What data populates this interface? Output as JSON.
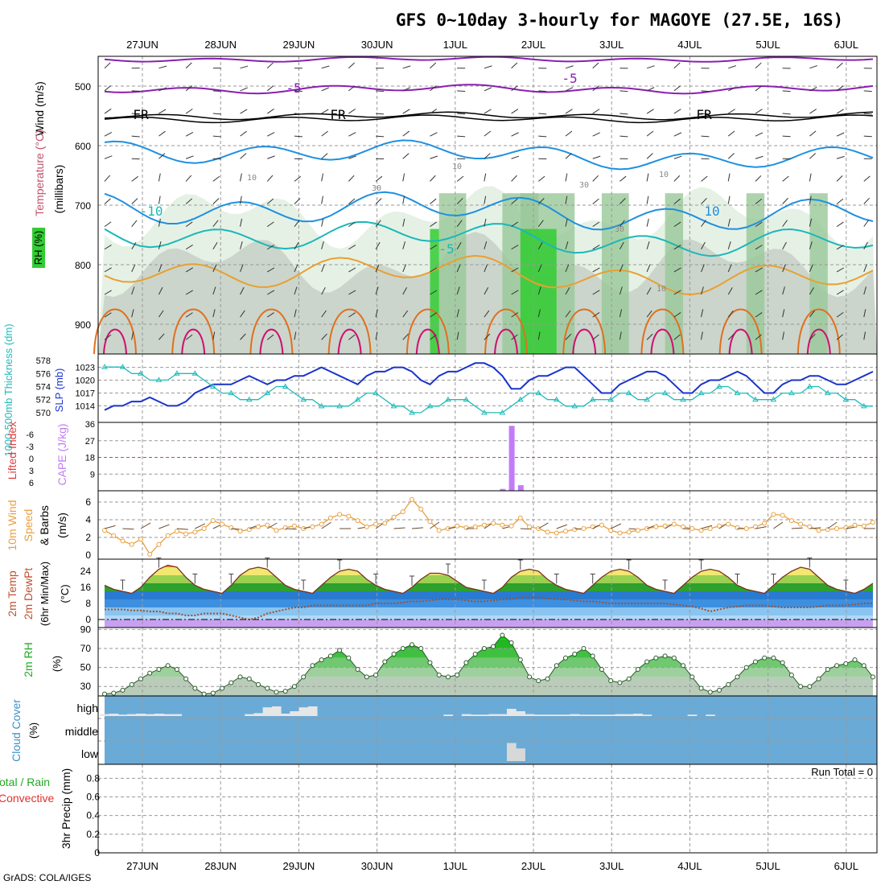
{
  "title": "GFS 0~10day 3-hourly for MAGOYE (27.5E, 16S)",
  "credit": "GrADS: COLA/IGES",
  "run_total": "Run Total = 0",
  "colors": {
    "rh_high": "#33cc33",
    "rh_mid": "#98c898",
    "rh_low": "#e3f0e3",
    "rh_gray": "#c8d2c8",
    "slp": "#1a33cc",
    "thickness": "#22bbbb",
    "cape": "#c27cf6",
    "wind10": "#e8a040",
    "cloud": "#6aaad6",
    "temp_line": "#7a3020",
    "dewpt": "#a05030"
  },
  "chart_data": {
    "type": "meteogram",
    "days": [
      "27JUN",
      "28JUN",
      "29JUN",
      "30JUN",
      "1JUL",
      "2JUL",
      "3JUL",
      "4JUL",
      "5JUL",
      "6JUL"
    ],
    "panels": [
      {
        "id": "upper-air",
        "ylabel": [
          "Temperature (°C)",
          "Wind (m/s)"
        ],
        "ylabel_inner": "(millibars)",
        "rh_label": "RH (%)",
        "yticks": [
          "500",
          "600",
          "700",
          "800",
          "900"
        ],
        "ylim": [
          950,
          450
        ],
        "contour_labels": [
          "-5",
          "-5",
          "FR",
          "FR",
          "FR",
          "10",
          "10",
          "-10",
          "-5",
          "10",
          "30",
          "30",
          "10",
          "30",
          "10"
        ]
      },
      {
        "id": "slp-thickness",
        "ylabel_left": "1000-500mb Thickness (dm)",
        "ylabel_right": "SLP (mb)",
        "yticks_left": [
          "578",
          "576",
          "574",
          "572",
          "570"
        ],
        "yticks_right": [
          "1023",
          "1020",
          "1017",
          "1014"
        ],
        "slp": [
          1013,
          1014,
          1014,
          1015,
          1015,
          1016,
          1015,
          1014,
          1014,
          1015,
          1017,
          1018,
          1019,
          1019,
          1019,
          1020,
          1021,
          1020,
          1019,
          1020,
          1020,
          1021,
          1021,
          1022,
          1023,
          1022,
          1021,
          1020,
          1019,
          1021,
          1022,
          1022,
          1023,
          1023,
          1022,
          1020,
          1019,
          1021,
          1022,
          1022,
          1023,
          1024,
          1024,
          1023,
          1021,
          1018,
          1018,
          1020,
          1021,
          1021,
          1022,
          1023,
          1023,
          1021,
          1019,
          1017,
          1017,
          1019,
          1020,
          1021,
          1022,
          1022,
          1021,
          1019,
          1017,
          1017,
          1019,
          1020,
          1020,
          1021,
          1022,
          1021,
          1019,
          1017,
          1017,
          1019,
          1020,
          1020,
          1021,
          1021,
          1020,
          1019,
          1019,
          1020,
          1021,
          1022
        ],
        "thickness": [
          577,
          577,
          577,
          576,
          576,
          575,
          575,
          575,
          576,
          576,
          576,
          575,
          574,
          573,
          573,
          572,
          572,
          572,
          573,
          574,
          574,
          573,
          572,
          572,
          571,
          571,
          571,
          571,
          572,
          573,
          573,
          572,
          571,
          571,
          570,
          570,
          571,
          571,
          572,
          572,
          572,
          571,
          570,
          570,
          570,
          571,
          572,
          573,
          573,
          572,
          572,
          571,
          571,
          571,
          572,
          572,
          572,
          573,
          573,
          572,
          572,
          573,
          573,
          572,
          572,
          572,
          573,
          573,
          574,
          574,
          573,
          573,
          572,
          572,
          572,
          573,
          573,
          573,
          574,
          574,
          573,
          573,
          572,
          572,
          571,
          571
        ]
      },
      {
        "id": "li-cape",
        "ylabel_left": "Lifted Index",
        "ylabel_right": "CAPE (J/kg)",
        "yticks_left": [
          "-6",
          "-3",
          "0",
          "3",
          "6"
        ],
        "yticks_right": [
          "36",
          "27",
          "18",
          "9"
        ],
        "cape": [
          {
            "i": 44,
            "v": 1
          },
          {
            "i": 45,
            "v": 35
          },
          {
            "i": 46,
            "v": 3
          }
        ]
      },
      {
        "id": "wind10",
        "ylabel": "10m Wind Speed & Barbs (m/s)",
        "yticks": [
          "6",
          "4",
          "2",
          "0"
        ],
        "ylim": [
          0,
          7
        ],
        "speed": [
          2.8,
          2.2,
          1.6,
          1.2,
          1.8,
          0.1,
          1.2,
          2.2,
          2.7,
          2.4,
          2.6,
          3.0,
          3.9,
          3.5,
          3.1,
          2.7,
          2.9,
          3.2,
          3.4,
          2.8,
          3.1,
          3.3,
          3.0,
          3.2,
          3.5,
          4.2,
          4.6,
          4.4,
          3.9,
          3.2,
          3.5,
          3.6,
          4.3,
          4.9,
          6.3,
          5.2,
          3.8,
          2.8,
          3.0,
          3.3,
          3.1,
          3.2,
          3.4,
          3.6,
          3.4,
          3.3,
          4.2,
          3.2,
          3.0,
          2.6,
          2.5,
          2.7,
          2.9,
          3.0,
          3.2,
          3.4,
          2.8,
          2.5,
          2.6,
          2.8,
          3.0,
          3.2,
          3.3,
          3.5,
          3.2,
          3.0,
          2.8,
          3.0,
          3.3,
          3.5,
          3.1,
          3.0,
          3.2,
          3.6,
          4.6,
          4.5,
          3.9,
          3.5,
          3.2,
          2.8,
          2.9,
          3.0,
          3.1,
          3.4,
          3.3,
          3.7
        ]
      },
      {
        "id": "temp",
        "ylabel": [
          "2m Temp",
          "2m DewPt",
          "(6hr Min/Max)"
        ],
        "yunit": "(°C)",
        "yticks": [
          "24",
          "16",
          "8",
          "0"
        ],
        "ylim": [
          -4,
          30
        ],
        "temp": [
          17,
          15,
          14,
          13,
          16,
          21,
          25,
          27,
          26,
          21,
          17,
          15,
          14,
          13,
          17,
          22,
          25,
          26,
          25,
          21,
          17,
          15,
          14,
          13,
          17,
          21,
          24,
          25,
          24,
          20,
          17,
          15,
          14,
          13,
          16,
          20,
          23,
          23,
          22,
          19,
          16,
          15,
          14,
          13,
          16,
          21,
          24,
          25,
          24,
          20,
          17,
          15,
          14,
          13,
          17,
          21,
          24,
          25,
          24,
          21,
          17,
          15,
          14,
          13,
          17,
          21,
          24,
          25,
          24,
          21,
          17,
          15,
          14,
          13,
          17,
          21,
          24,
          26,
          25,
          21,
          17,
          15,
          14,
          13,
          15,
          18
        ],
        "dewpt": [
          5,
          5,
          5,
          4.5,
          4.5,
          4,
          4,
          3,
          3,
          2,
          2,
          3,
          3,
          3,
          2,
          1,
          0,
          1,
          3,
          4,
          5,
          6,
          6,
          7,
          7,
          7,
          7,
          7,
          7,
          7,
          8,
          8,
          8,
          8.5,
          9,
          9,
          9.5,
          10,
          10,
          10,
          9.5,
          9,
          9,
          9.5,
          10,
          10,
          11,
          11,
          11,
          10.5,
          10,
          10,
          9.5,
          9,
          9,
          8.5,
          8,
          8,
          8,
          8,
          8,
          8,
          8,
          7.5,
          7,
          6.5,
          5.5,
          4,
          5,
          6,
          6.5,
          7,
          7,
          7,
          6.5,
          6,
          6,
          6,
          6,
          6.5,
          7,
          7,
          7,
          7.5,
          8,
          8
        ]
      },
      {
        "id": "rh",
        "ylabel": "2m RH",
        "yunit": "(%)",
        "yticks": [
          "90",
          "70",
          "50",
          "30"
        ],
        "ylim": [
          20,
          92
        ],
        "rh": [
          22,
          23,
          26,
          32,
          38,
          44,
          48,
          52,
          48,
          38,
          28,
          22,
          23,
          28,
          34,
          40,
          38,
          32,
          28,
          24,
          25,
          30,
          40,
          52,
          58,
          62,
          68,
          60,
          48,
          40,
          42,
          56,
          64,
          70,
          74,
          70,
          55,
          42,
          40,
          42,
          55,
          64,
          70,
          72,
          84,
          76,
          58,
          40,
          36,
          38,
          52,
          60,
          64,
          70,
          62,
          48,
          36,
          34,
          38,
          48,
          56,
          60,
          62,
          60,
          52,
          40,
          28,
          24,
          26,
          32,
          40,
          50,
          56,
          60,
          60,
          55,
          42,
          30,
          30,
          38,
          48,
          52,
          54,
          58,
          52,
          40
        ]
      },
      {
        "id": "cloud",
        "ylabel": "Cloud Cover",
        "yunit": "(%)",
        "levels": [
          "high",
          "middle",
          "low"
        ],
        "high": [
          4,
          5,
          3,
          4,
          5,
          4,
          5,
          4,
          4,
          0,
          0,
          0,
          0,
          0,
          0,
          0,
          4,
          6,
          18,
          20,
          5,
          10,
          18,
          20,
          0,
          0,
          0,
          0,
          0,
          0,
          0,
          0,
          0,
          0,
          0,
          0,
          0,
          0,
          3,
          0,
          4,
          3,
          3,
          4,
          4,
          15,
          10,
          4,
          3,
          3,
          3,
          3,
          4,
          3,
          3,
          3,
          3,
          4,
          4,
          5,
          3,
          0,
          0,
          0,
          0,
          3,
          0,
          3,
          0,
          0,
          0,
          0,
          0,
          0,
          0,
          0,
          0,
          0,
          0,
          0,
          0,
          0,
          0,
          0,
          0,
          0
        ],
        "low_cloud": [
          {
            "i": 45,
            "v": 50
          },
          {
            "i": 46,
            "v": 35
          }
        ]
      },
      {
        "id": "precip",
        "ylabel": "3hr Precip (mm)",
        "ylabel2": [
          "Total / Rain",
          "Convective"
        ],
        "yticks": [
          "0.8",
          "0.6",
          "0.4",
          "0.2",
          "0"
        ],
        "ylim": [
          0,
          0.95
        ],
        "values": []
      }
    ]
  }
}
